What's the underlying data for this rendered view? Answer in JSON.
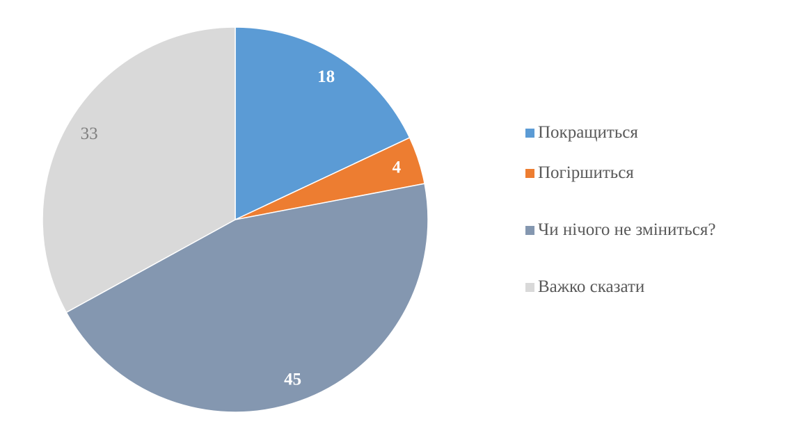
{
  "chart_data": {
    "type": "pie",
    "title": "",
    "categories": [
      "Покращиться",
      "Погіршиться",
      "Чи нічого не зміниться?",
      "Важко сказати"
    ],
    "values": [
      18,
      4,
      45,
      33
    ],
    "data_labels": [
      "18",
      "4",
      "45",
      "33"
    ],
    "colors": [
      "#5B9BD5",
      "#ED7D31",
      "#8497B0",
      "#D9D9D9"
    ],
    "label_colors": [
      "#FFFFFF",
      "#FFFFFF",
      "#FFFFFF",
      "#7F7F7F"
    ],
    "start_angle": "top, clockwise",
    "legend_position": "right"
  }
}
